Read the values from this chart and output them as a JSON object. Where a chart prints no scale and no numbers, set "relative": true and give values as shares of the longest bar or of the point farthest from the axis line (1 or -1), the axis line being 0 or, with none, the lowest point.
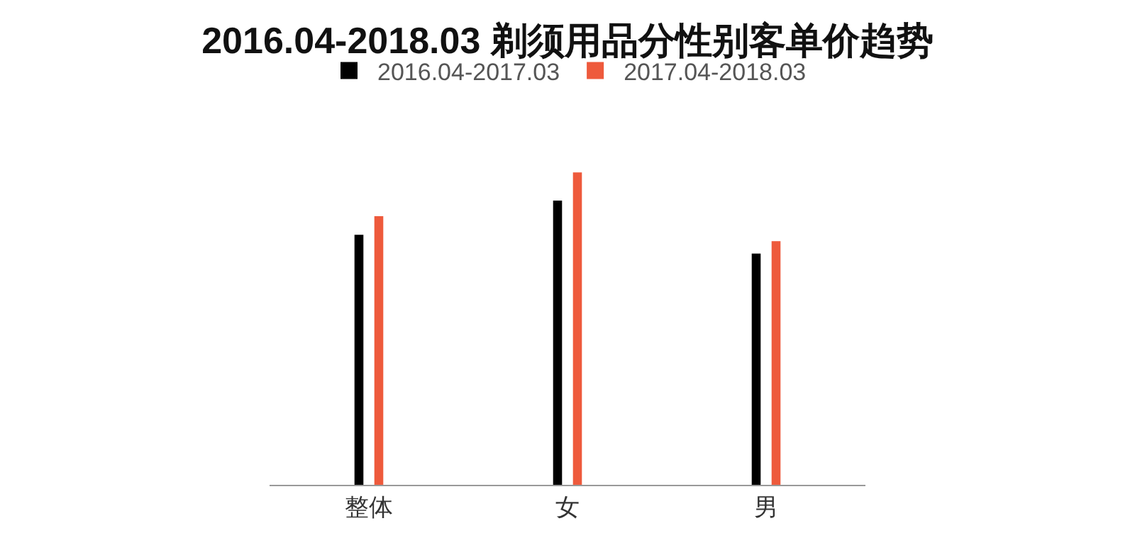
{
  "chart_data": {
    "type": "bar",
    "title": "2016.04-2018.03 剃须用品分性别客单价趋势",
    "categories": [
      "整体",
      "女",
      "男"
    ],
    "relative": true,
    "legend": "top",
    "grid": false,
    "series": [
      {
        "name": "2016.04-2017.03",
        "color": "#000000",
        "values": [
          0.8,
          0.91,
          0.74
        ]
      },
      {
        "name": "2017.04-2018.03",
        "color": "#ee5a3c",
        "values": [
          0.86,
          1,
          0.78
        ]
      }
    ]
  }
}
